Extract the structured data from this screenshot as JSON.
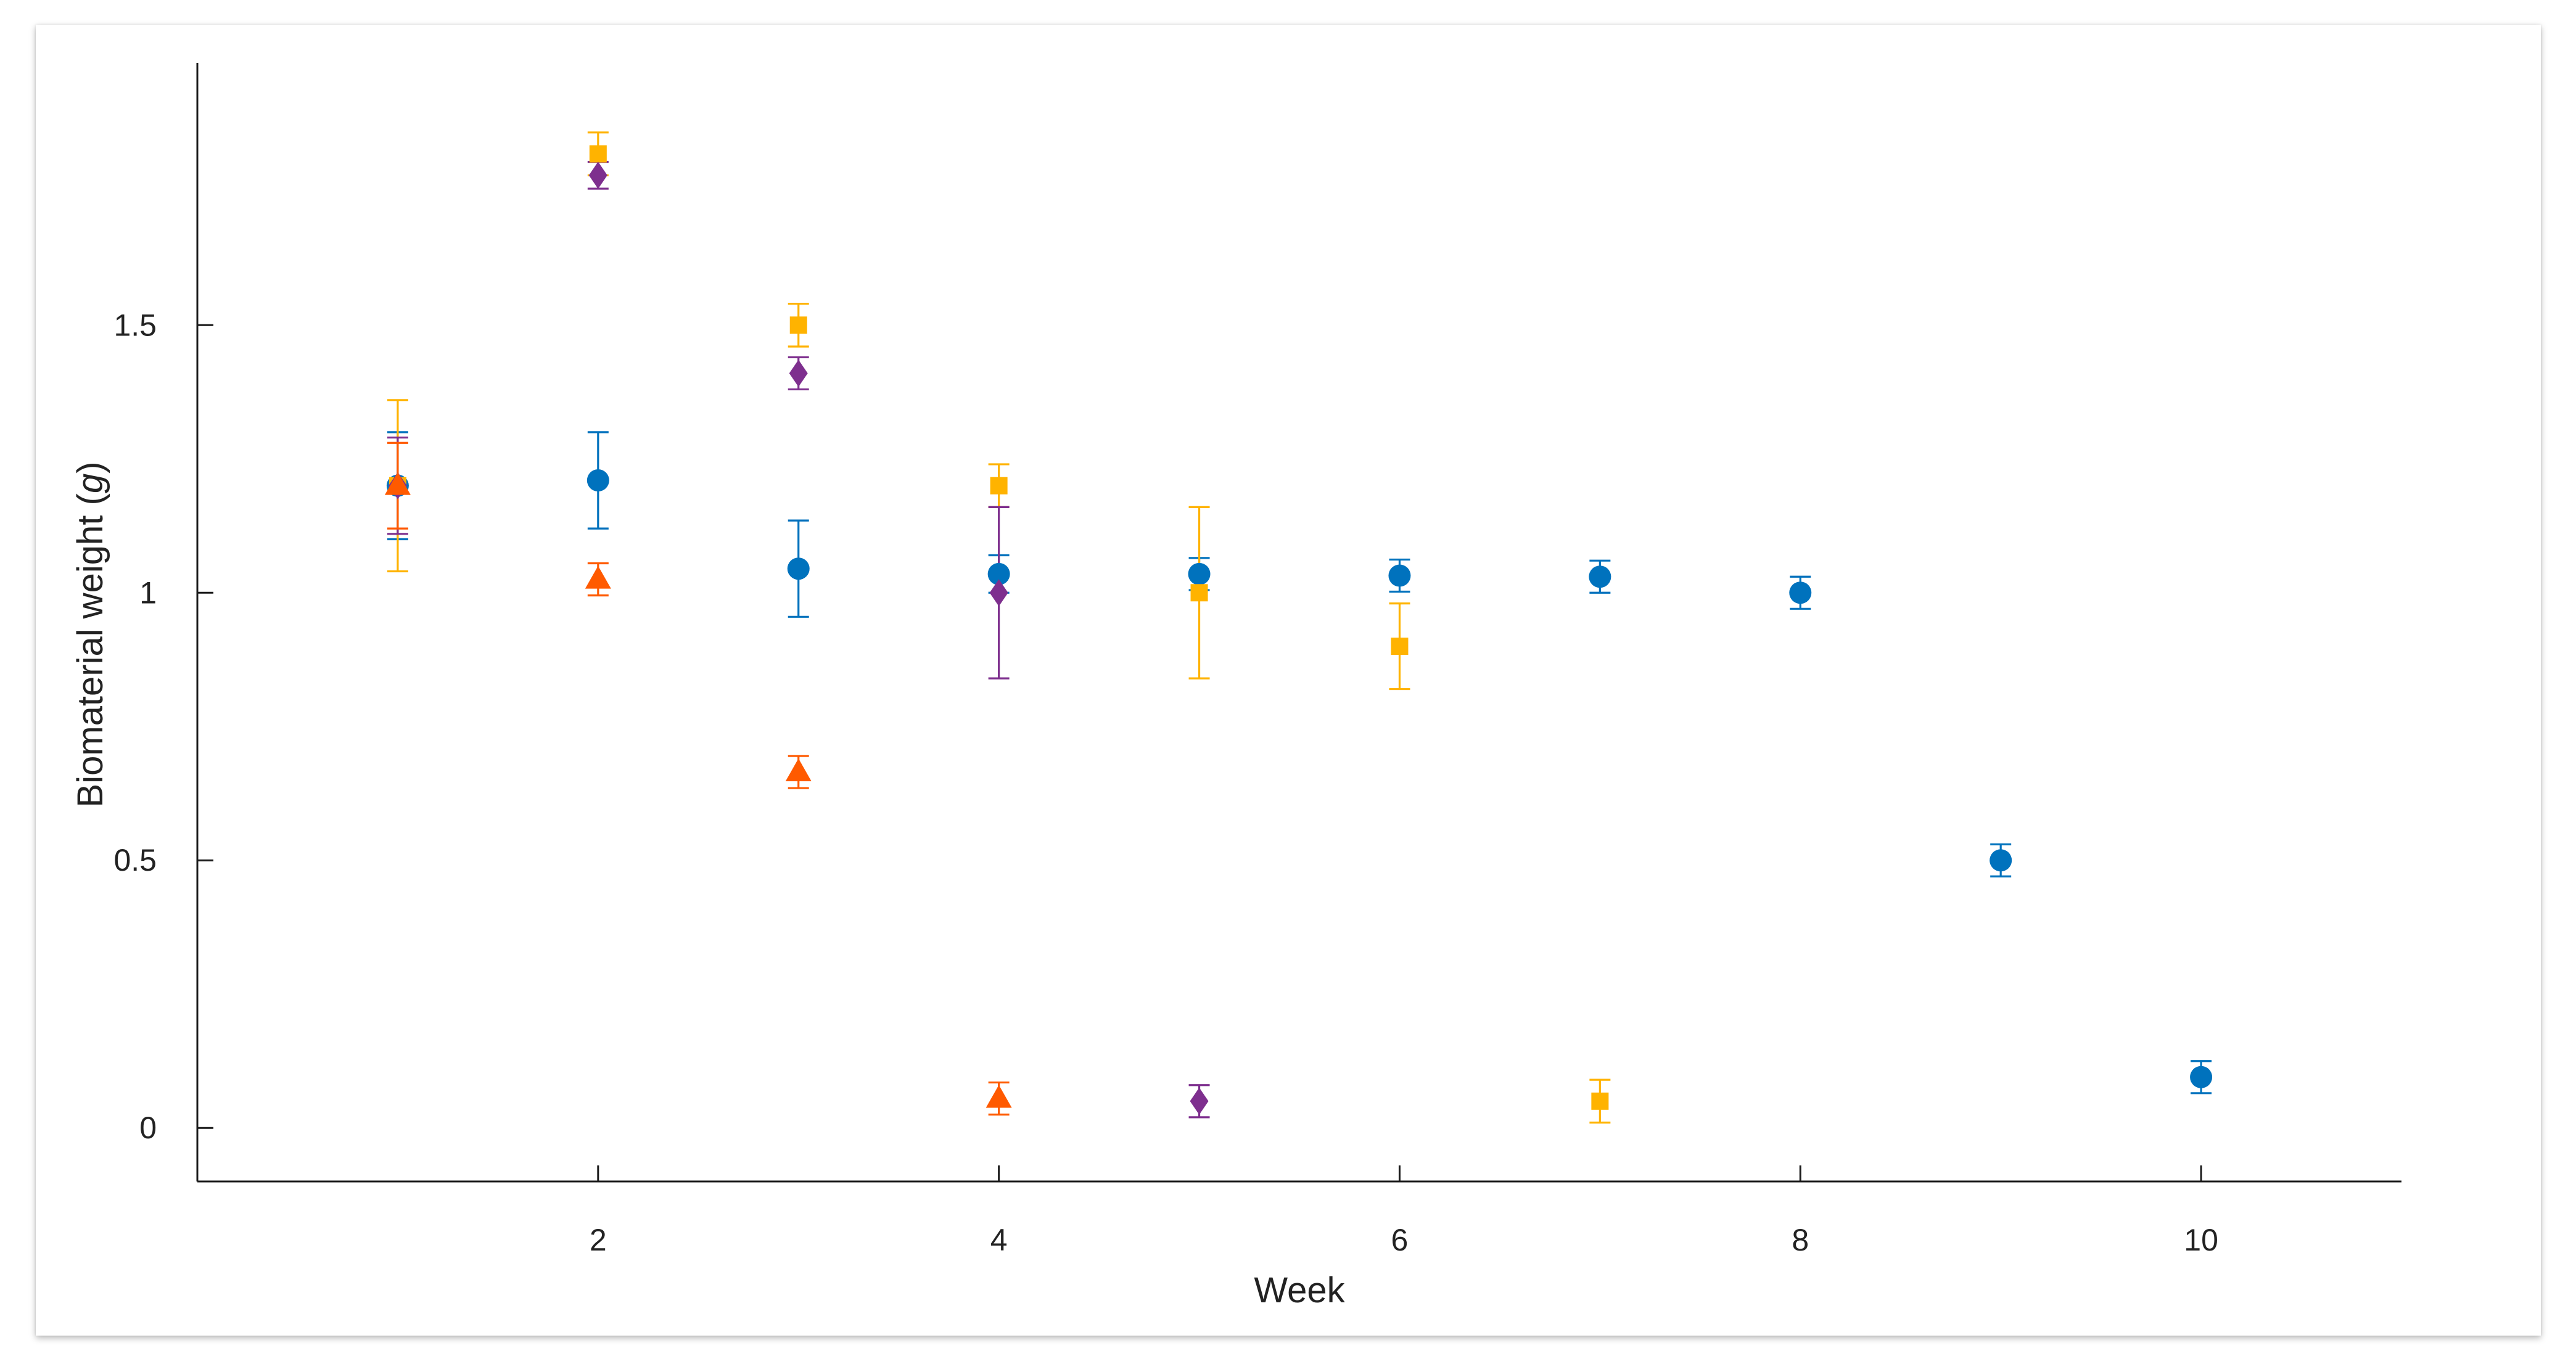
{
  "chart_data": {
    "type": "scatter",
    "title": "",
    "xlabel": "Week",
    "ylabel_main": "Biomaterial weight (",
    "ylabel_unit": "g",
    "ylabel_close": ")",
    "xlim": [
      0,
      11
    ],
    "ylim": [
      -0.1,
      1.99
    ],
    "xticks": [
      2,
      4,
      6,
      8,
      10
    ],
    "xtick_labels": [
      "2",
      "4",
      "6",
      "8",
      "10"
    ],
    "yticks": [
      0,
      0.5,
      1,
      1.5
    ],
    "ytick_labels": [
      "0",
      "0.5",
      "1",
      "1.5"
    ],
    "grid": false,
    "legend": "none",
    "series": [
      {
        "marker": "circle",
        "color": "#0072BD",
        "points": [
          {
            "x": 1,
            "y": 1.2,
            "lo": 1.1,
            "hi": 1.3
          },
          {
            "x": 2,
            "y": 1.21,
            "lo": 1.12,
            "hi": 1.3
          },
          {
            "x": 3,
            "y": 1.045,
            "lo": 0.955,
            "hi": 1.135
          },
          {
            "x": 4,
            "y": 1.035,
            "lo": 1.0,
            "hi": 1.07
          },
          {
            "x": 5,
            "y": 1.035,
            "lo": 1.005,
            "hi": 1.065
          },
          {
            "x": 6,
            "y": 1.032,
            "lo": 1.002,
            "hi": 1.062
          },
          {
            "x": 7,
            "y": 1.03,
            "lo": 1.0,
            "hi": 1.06
          },
          {
            "x": 8,
            "y": 1.0,
            "lo": 0.97,
            "hi": 1.03
          },
          {
            "x": 9,
            "y": 0.5,
            "lo": 0.47,
            "hi": 0.53
          },
          {
            "x": 10,
            "y": 0.095,
            "lo": 0.065,
            "hi": 0.125
          }
        ]
      },
      {
        "marker": "square",
        "color": "#FFB300",
        "points": [
          {
            "x": 1,
            "y": 1.2,
            "lo": 1.04,
            "hi": 1.36
          },
          {
            "x": 2,
            "y": 1.82,
            "lo": 1.78,
            "hi": 1.86
          },
          {
            "x": 3,
            "y": 1.5,
            "lo": 1.46,
            "hi": 1.54
          },
          {
            "x": 4,
            "y": 1.2,
            "lo": 1.16,
            "hi": 1.24
          },
          {
            "x": 5,
            "y": 1.0,
            "lo": 0.84,
            "hi": 1.16
          },
          {
            "x": 6,
            "y": 0.9,
            "lo": 0.82,
            "hi": 0.98
          },
          {
            "x": 7,
            "y": 0.05,
            "lo": 0.01,
            "hi": 0.09
          }
        ]
      },
      {
        "marker": "diamond",
        "color": "#7E2F8E",
        "points": [
          {
            "x": 1,
            "y": 1.2,
            "lo": 1.11,
            "hi": 1.29
          },
          {
            "x": 2,
            "y": 1.78,
            "lo": 1.755,
            "hi": 1.805
          },
          {
            "x": 3,
            "y": 1.41,
            "lo": 1.38,
            "hi": 1.44
          },
          {
            "x": 4,
            "y": 1.0,
            "lo": 0.84,
            "hi": 1.16
          },
          {
            "x": 5,
            "y": 0.05,
            "lo": 0.02,
            "hi": 0.08
          }
        ]
      },
      {
        "marker": "triangle",
        "color": "#FF5A00",
        "points": [
          {
            "x": 1,
            "y": 1.2,
            "lo": 1.12,
            "hi": 1.28
          },
          {
            "x": 2,
            "y": 1.025,
            "lo": 0.995,
            "hi": 1.055
          },
          {
            "x": 3,
            "y": 0.665,
            "lo": 0.635,
            "hi": 0.695
          },
          {
            "x": 4,
            "y": 0.055,
            "lo": 0.025,
            "hi": 0.085
          }
        ]
      }
    ]
  }
}
